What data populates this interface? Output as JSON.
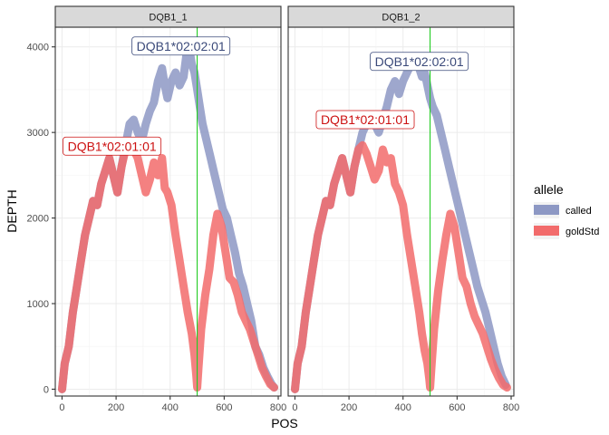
{
  "chart_data": {
    "type": "line",
    "xlabel": "POS",
    "ylabel": "DEPTH",
    "xlim": [
      -25,
      810
    ],
    "ylim": [
      -80,
      4230
    ],
    "x_ticks": [
      0,
      200,
      400,
      600,
      800
    ],
    "y_ticks": [
      0,
      1000,
      2000,
      3000,
      4000
    ],
    "grid": true,
    "legend": {
      "title": "allele",
      "position": "right",
      "entries": [
        {
          "name": "called",
          "color": "#8d98c4"
        },
        {
          "name": "goldStd",
          "color": "#f26b6b"
        }
      ]
    },
    "vline": {
      "x": 500,
      "color": "#22cc22"
    },
    "panels": [
      {
        "title": "DQB1_1",
        "labels": [
          {
            "text": "DQB1*02:02:01",
            "x": 440,
            "y": 4010,
            "series": "called"
          },
          {
            "text": "DQB1*02:01:01",
            "x": 185,
            "y": 2840,
            "series": "goldStd"
          }
        ],
        "series": [
          {
            "name": "called",
            "x": [
              0,
              10,
              25,
              40,
              55,
              70,
              85,
              100,
              115,
              130,
              145,
              160,
              175,
              190,
              205,
              220,
              235,
              250,
              265,
              280,
              295,
              310,
              325,
              340,
              355,
              370,
              380,
              390,
              405,
              420,
              435,
              450,
              460,
              470,
              480,
              490,
              500,
              510,
              520,
              535,
              550,
              565,
              580,
              595,
              610,
              625,
              640,
              655,
              670,
              685,
              700,
              715,
              730,
              745,
              760,
              775,
              785
            ],
            "values": [
              0,
              300,
              500,
              900,
              1200,
              1500,
              1800,
              2000,
              2200,
              2150,
              2400,
              2550,
              2700,
              2500,
              2300,
              2600,
              2850,
              3100,
              3150,
              3000,
              2900,
              3100,
              3250,
              3350,
              3600,
              3750,
              3550,
              3400,
              3600,
              3700,
              3550,
              3650,
              3900,
              4000,
              3800,
              3700,
              3500,
              3300,
              3100,
              2900,
              2700,
              2500,
              2300,
              2100,
              2000,
              1800,
              1600,
              1350,
              1200,
              1000,
              800,
              500,
              400,
              250,
              150,
              60,
              20
            ]
          },
          {
            "name": "goldStd",
            "x": [
              0,
              10,
              25,
              40,
              55,
              70,
              85,
              100,
              115,
              130,
              145,
              160,
              175,
              190,
              205,
              220,
              235,
              250,
              265,
              280,
              295,
              310,
              325,
              340,
              355,
              370,
              380,
              390,
              405,
              420,
              435,
              450,
              465,
              480,
              490,
              497,
              500,
              505,
              515,
              530,
              545,
              560,
              575,
              590,
              605,
              620,
              635,
              650,
              665,
              680,
              695,
              710,
              725,
              740,
              755,
              770,
              785
            ],
            "values": [
              0,
              300,
              500,
              900,
              1200,
              1500,
              1800,
              2000,
              2200,
              2150,
              2400,
              2550,
              2700,
              2500,
              2300,
              2600,
              2800,
              2900,
              2800,
              2700,
              2500,
              2300,
              2450,
              2650,
              2500,
              2700,
              2350,
              2300,
              2150,
              1800,
              1500,
              1200,
              900,
              650,
              400,
              150,
              20,
              250,
              700,
              1100,
              1400,
              1800,
              2050,
              1900,
              1600,
              1300,
              1250,
              1100,
              900,
              800,
              700,
              550,
              400,
              250,
              150,
              60,
              20
            ]
          }
        ]
      },
      {
        "title": "DQB1_2",
        "labels": [
          {
            "text": "DQB1*02:02:01",
            "x": 460,
            "y": 3830,
            "series": "called"
          },
          {
            "text": "DQB1*02:01:01",
            "x": 260,
            "y": 3150,
            "series": "goldStd"
          }
        ],
        "series": [
          {
            "name": "called",
            "x": [
              0,
              10,
              25,
              40,
              55,
              70,
              85,
              100,
              115,
              130,
              145,
              160,
              175,
              190,
              205,
              220,
              235,
              250,
              265,
              280,
              295,
              310,
              325,
              340,
              355,
              370,
              385,
              400,
              415,
              430,
              445,
              460,
              470,
              480,
              490,
              500,
              510,
              525,
              540,
              555,
              570,
              585,
              600,
              615,
              630,
              645,
              660,
              675,
              690,
              705,
              720,
              735,
              750,
              765,
              780
            ],
            "values": [
              0,
              300,
              500,
              900,
              1200,
              1500,
              1800,
              2000,
              2200,
              2150,
              2400,
              2550,
              2700,
              2500,
              2300,
              2600,
              2800,
              3000,
              3100,
              3200,
              3100,
              3000,
              3150,
              3300,
              3500,
              3600,
              3450,
              3600,
              3700,
              3800,
              3850,
              3750,
              3650,
              3700,
              3550,
              3400,
              3300,
              3200,
              3000,
              2800,
              2600,
              2400,
              2200,
              2000,
              1800,
              1600,
              1400,
              1200,
              1050,
              900,
              700,
              500,
              300,
              150,
              50
            ]
          },
          {
            "name": "goldStd",
            "x": [
              0,
              10,
              25,
              40,
              55,
              70,
              85,
              100,
              115,
              130,
              145,
              160,
              175,
              190,
              205,
              220,
              235,
              250,
              265,
              280,
              295,
              310,
              325,
              340,
              355,
              370,
              385,
              400,
              415,
              430,
              445,
              460,
              470,
              480,
              490,
              497,
              500,
              505,
              515,
              530,
              545,
              560,
              575,
              590,
              605,
              620,
              635,
              650,
              665,
              680,
              695,
              710,
              725,
              740,
              755,
              770,
              785
            ],
            "values": [
              0,
              300,
              500,
              900,
              1200,
              1500,
              1800,
              2000,
              2200,
              2150,
              2400,
              2550,
              2700,
              2500,
              2300,
              2600,
              2800,
              2850,
              2750,
              2600,
              2450,
              2550,
              2800,
              2650,
              2700,
              2400,
              2300,
              2150,
              1800,
              1500,
              1200,
              900,
              650,
              450,
              300,
              120,
              20,
              250,
              700,
              1150,
              1500,
              1800,
              2050,
              1900,
              1600,
              1300,
              1200,
              1000,
              850,
              750,
              650,
              500,
              350,
              230,
              130,
              50,
              20
            ]
          }
        ]
      }
    ]
  }
}
